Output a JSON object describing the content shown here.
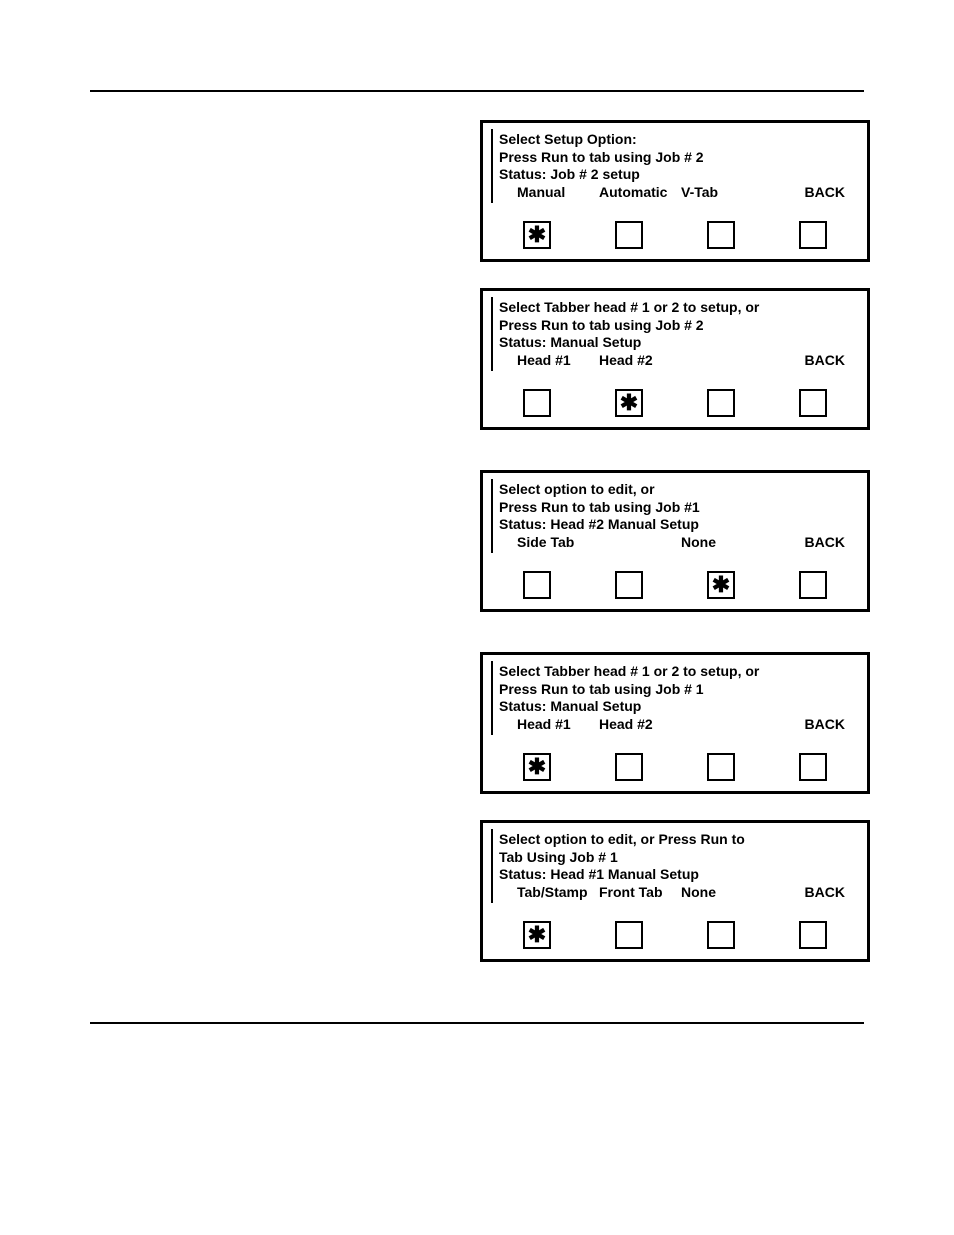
{
  "panels": [
    {
      "lines": [
        "Select Setup Option:",
        "Press Run to tab using Job # 2",
        "Status:  Job # 2 setup"
      ],
      "labels": [
        "Manual",
        "Automatic",
        "V-Tab",
        "BACK"
      ],
      "selected": [
        true,
        false,
        false,
        false
      ],
      "gap_class": "gap-after-1"
    },
    {
      "lines": [
        "Select Tabber head # 1 or 2 to setup, or",
        "Press Run to tab using Job # 2",
        "Status: Manual Setup"
      ],
      "labels": [
        "Head #1",
        "Head #2",
        "",
        "BACK"
      ],
      "selected": [
        false,
        true,
        false,
        false
      ],
      "gap_class": "gap-after-2"
    },
    {
      "lines": [
        "Select option to edit, or",
        "Press Run to tab using Job #1",
        "Status: Head #2 Manual Setup"
      ],
      "labels": [
        "Side Tab",
        "",
        "None",
        "BACK"
      ],
      "selected": [
        false,
        false,
        true,
        false
      ],
      "gap_class": "gap-after-3"
    },
    {
      "lines": [
        "Select Tabber head # 1 or 2 to setup, or",
        "Press Run to tab using Job # 1",
        "Status: Manual Setup"
      ],
      "labels": [
        "Head #1",
        "Head #2",
        "",
        "BACK"
      ],
      "selected": [
        true,
        false,
        false,
        false
      ],
      "gap_class": ""
    },
    {
      "lines": [
        "Select option to edit, or Press Run to",
        "Tab Using Job # 1",
        "Status: Head #1 Manual Setup"
      ],
      "labels": [
        "Tab/Stamp",
        "Front Tab",
        "None",
        "BACK"
      ],
      "selected": [
        true,
        false,
        false,
        false
      ],
      "gap_class": ""
    }
  ],
  "marker": "✱"
}
